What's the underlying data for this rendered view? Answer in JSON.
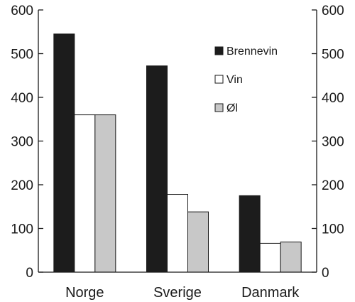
{
  "chart_data": {
    "type": "bar",
    "title": "",
    "xlabel": "",
    "ylabel": "",
    "categories": [
      "Norge",
      "Sverige",
      "Danmark"
    ],
    "series": [
      {
        "name": "Brennevin",
        "values": [
          545,
          472,
          175
        ],
        "color": "#1c1c1c"
      },
      {
        "name": "Vin",
        "values": [
          360,
          178,
          66
        ],
        "color": "#ffffff"
      },
      {
        "name": "Øl",
        "values": [
          360,
          138,
          69
        ],
        "color": "#c8c8c8"
      }
    ],
    "ylim": [
      0,
      600
    ],
    "yticks": [
      "0",
      "100",
      "200",
      "300",
      "400",
      "500",
      "600"
    ],
    "y_axis_both_sides": true,
    "grid": false,
    "legend_position": "top-right"
  }
}
